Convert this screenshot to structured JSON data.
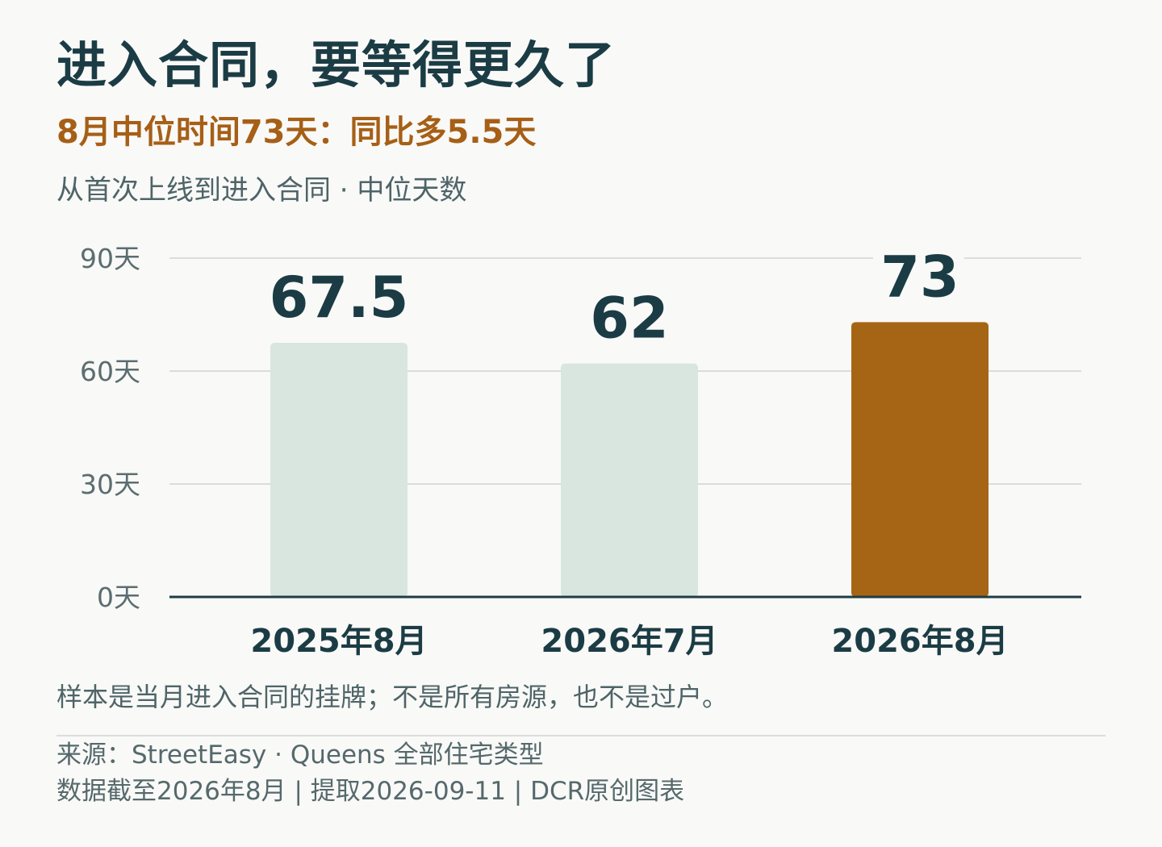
{
  "header": {
    "title": "进入合同，要等得更久了",
    "subtitle": "8月中位时间73天：同比多5.5天",
    "description": "从首次上线到进入合同 · 中位天数"
  },
  "chart_data": {
    "type": "bar",
    "categories": [
      "2025年8月",
      "2026年7月",
      "2026年8月"
    ],
    "values": [
      67.5,
      62,
      73
    ],
    "value_labels": [
      "67.5",
      "62",
      "73"
    ],
    "y_ticks": [
      {
        "value": 0,
        "label": "0天"
      },
      {
        "value": 30,
        "label": "30天"
      },
      {
        "value": 60,
        "label": "60天"
      },
      {
        "value": 90,
        "label": "90天"
      }
    ],
    "ylim": [
      0,
      90
    ],
    "grid": true,
    "colors": {
      "default_bar": "#d9e6e0",
      "highlight_bar": "#a66514",
      "grid": "#d8dedb",
      "axis": "#1f3d45"
    },
    "highlight_index": 2
  },
  "footer": {
    "note": "样本是当月进入合同的挂牌；不是所有房源，也不是过户。",
    "source_line": "来源：StreetEasy · Queens 全部住宅类型",
    "meta_line": "数据截至2026年8月 | 提取2026-09-11 | DCR原创图表"
  }
}
